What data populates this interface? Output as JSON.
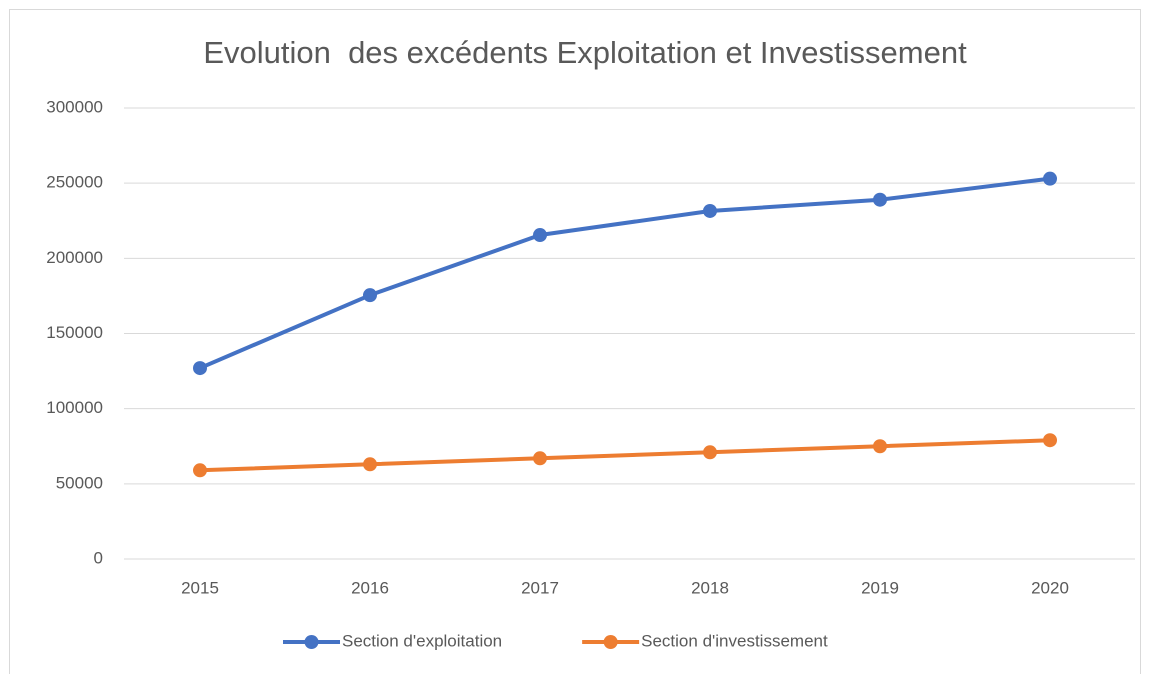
{
  "chart_data": {
    "type": "line",
    "title": "Evolution  des excédents Exploitation et Investissement",
    "categories": [
      "2015",
      "2016",
      "2017",
      "2018",
      "2019",
      "2020"
    ],
    "series": [
      {
        "name": "Section d'exploitation",
        "color": "#4472c4",
        "values": [
          127000,
          175500,
          215500,
          231500,
          239000,
          253000
        ]
      },
      {
        "name": "Section d'investissement",
        "color": "#ed7d31",
        "values": [
          59000,
          63000,
          67000,
          71000,
          75000,
          79000
        ]
      }
    ],
    "ylim": [
      0,
      300000
    ],
    "yticks": [
      0,
      50000,
      100000,
      150000,
      200000,
      250000,
      300000
    ],
    "grid": true,
    "legend": "bottom"
  }
}
